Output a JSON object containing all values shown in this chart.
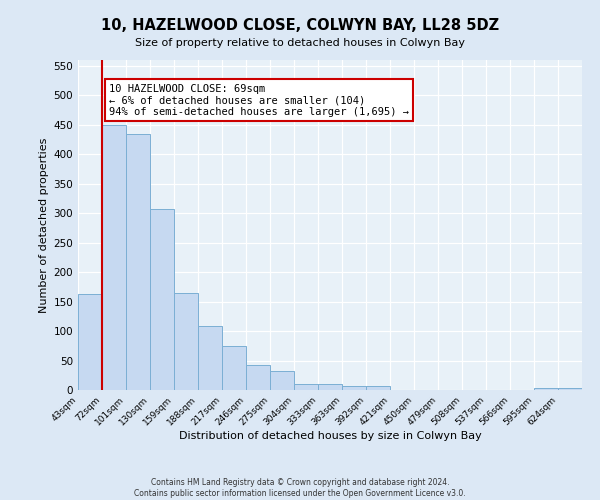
{
  "title": "10, HAZELWOOD CLOSE, COLWYN BAY, LL28 5DZ",
  "subtitle": "Size of property relative to detached houses in Colwyn Bay",
  "xlabel": "Distribution of detached houses by size in Colwyn Bay",
  "ylabel": "Number of detached properties",
  "bar_labels": [
    "43sqm",
    "72sqm",
    "101sqm",
    "130sqm",
    "159sqm",
    "188sqm",
    "217sqm",
    "246sqm",
    "275sqm",
    "304sqm",
    "333sqm",
    "363sqm",
    "392sqm",
    "421sqm",
    "450sqm",
    "479sqm",
    "508sqm",
    "537sqm",
    "566sqm",
    "595sqm",
    "624sqm"
  ],
  "bar_values": [
    163,
    450,
    435,
    308,
    165,
    108,
    74,
    43,
    33,
    10,
    10,
    7,
    7,
    0,
    0,
    0,
    0,
    0,
    0,
    3,
    3
  ],
  "bar_color": "#c6d9f1",
  "bar_edge_color": "#7bafd4",
  "annotation_text_line1": "10 HAZELWOOD CLOSE: 69sqm",
  "annotation_text_line2": "← 6% of detached houses are smaller (104)",
  "annotation_text_line3": "94% of semi-detached houses are larger (1,695) →",
  "annotation_box_facecolor": "#ffffff",
  "annotation_box_edgecolor": "#cc0000",
  "property_line_color": "#cc0000",
  "ylim": [
    0,
    560
  ],
  "yticks": [
    0,
    50,
    100,
    150,
    200,
    250,
    300,
    350,
    400,
    450,
    500,
    550
  ],
  "footer_line1": "Contains HM Land Registry data © Crown copyright and database right 2024.",
  "footer_line2": "Contains public sector information licensed under the Open Government Licence v3.0.",
  "bg_color": "#dce8f5",
  "plot_bg_color": "#e8f1f8"
}
